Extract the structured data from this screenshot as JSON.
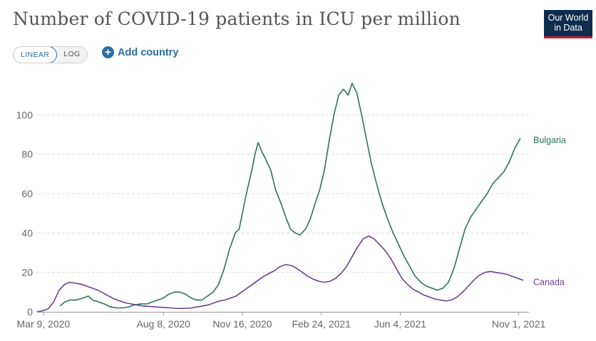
{
  "header": {
    "title": "Number of COVID-19 patients in ICU per million",
    "logo_line1": "Our World",
    "logo_line2": "in Data"
  },
  "controls": {
    "linear_label": "LINEAR",
    "log_label": "LOG",
    "add_country_label": "Add country"
  },
  "colors": {
    "bulgaria": "#2b7360",
    "canada": "#6c3e92",
    "grid": "#dddddd",
    "accent": "#2d6ea4"
  },
  "chart_data": {
    "type": "line",
    "title": "Number of COVID-19 patients in ICU per million",
    "xlabel": "",
    "ylabel": "",
    "xlim": [
      "2020-03-01",
      "2021-11-14"
    ],
    "ylim": [
      0,
      120
    ],
    "y_ticks": [
      0,
      20,
      40,
      60,
      80,
      100
    ],
    "x_ticks": [
      {
        "date": "2020-03-09",
        "label": "Mar 9, 2020"
      },
      {
        "date": "2020-08-08",
        "label": "Aug 8, 2020"
      },
      {
        "date": "2020-11-16",
        "label": "Nov 16, 2020"
      },
      {
        "date": "2021-02-24",
        "label": "Feb 24, 2021"
      },
      {
        "date": "2021-06-04",
        "label": "Jun 4, 2021"
      },
      {
        "date": "2021-11-01",
        "label": "Nov 1, 2021"
      }
    ],
    "grid": "horizontal-dashed",
    "legend": "line-end-labels",
    "series": [
      {
        "name": "Bulgaria",
        "points": [
          [
            "2020-03-30",
            3
          ],
          [
            "2020-04-05",
            5
          ],
          [
            "2020-04-12",
            6
          ],
          [
            "2020-04-20",
            6
          ],
          [
            "2020-04-28",
            7
          ],
          [
            "2020-05-05",
            8
          ],
          [
            "2020-05-10",
            6
          ],
          [
            "2020-05-18",
            5
          ],
          [
            "2020-05-25",
            4
          ],
          [
            "2020-06-02",
            2.5
          ],
          [
            "2020-06-10",
            2
          ],
          [
            "2020-06-18",
            2
          ],
          [
            "2020-06-25",
            2.5
          ],
          [
            "2020-07-02",
            3.5
          ],
          [
            "2020-07-10",
            4
          ],
          [
            "2020-07-18",
            4
          ],
          [
            "2020-07-25",
            5
          ],
          [
            "2020-08-01",
            6
          ],
          [
            "2020-08-08",
            7
          ],
          [
            "2020-08-15",
            9
          ],
          [
            "2020-08-22",
            10
          ],
          [
            "2020-08-29",
            10
          ],
          [
            "2020-09-05",
            9
          ],
          [
            "2020-09-12",
            7
          ],
          [
            "2020-09-19",
            6
          ],
          [
            "2020-09-26",
            6
          ],
          [
            "2020-10-03",
            8
          ],
          [
            "2020-10-10",
            10
          ],
          [
            "2020-10-17",
            14
          ],
          [
            "2020-10-24",
            22
          ],
          [
            "2020-10-31",
            32
          ],
          [
            "2020-11-07",
            40
          ],
          [
            "2020-11-12",
            42
          ],
          [
            "2020-11-16",
            50
          ],
          [
            "2020-11-20",
            58
          ],
          [
            "2020-11-24",
            65
          ],
          [
            "2020-11-28",
            72
          ],
          [
            "2020-12-02",
            80
          ],
          [
            "2020-12-06",
            86
          ],
          [
            "2020-12-10",
            82
          ],
          [
            "2020-12-16",
            77
          ],
          [
            "2020-12-22",
            72
          ],
          [
            "2020-12-28",
            62
          ],
          [
            "2021-01-04",
            55
          ],
          [
            "2021-01-10",
            48
          ],
          [
            "2021-01-16",
            42
          ],
          [
            "2021-01-22",
            40
          ],
          [
            "2021-01-28",
            39
          ],
          [
            "2021-02-04",
            42
          ],
          [
            "2021-02-10",
            47
          ],
          [
            "2021-02-16",
            55
          ],
          [
            "2021-02-22",
            62
          ],
          [
            "2021-02-28",
            72
          ],
          [
            "2021-03-06",
            87
          ],
          [
            "2021-03-12",
            100
          ],
          [
            "2021-03-18",
            110
          ],
          [
            "2021-03-24",
            113
          ],
          [
            "2021-03-30",
            110
          ],
          [
            "2021-04-04",
            116
          ],
          [
            "2021-04-10",
            111
          ],
          [
            "2021-04-16",
            100
          ],
          [
            "2021-04-22",
            88
          ],
          [
            "2021-04-28",
            76
          ],
          [
            "2021-05-05",
            65
          ],
          [
            "2021-05-12",
            55
          ],
          [
            "2021-05-19",
            47
          ],
          [
            "2021-05-26",
            40
          ],
          [
            "2021-06-02",
            34
          ],
          [
            "2021-06-09",
            28
          ],
          [
            "2021-06-16",
            23
          ],
          [
            "2021-06-23",
            18
          ],
          [
            "2021-06-30",
            15
          ],
          [
            "2021-07-07",
            13
          ],
          [
            "2021-07-14",
            12
          ],
          [
            "2021-07-21",
            11
          ],
          [
            "2021-07-28",
            12
          ],
          [
            "2021-08-04",
            15
          ],
          [
            "2021-08-11",
            22
          ],
          [
            "2021-08-18",
            32
          ],
          [
            "2021-08-25",
            42
          ],
          [
            "2021-09-01",
            48
          ],
          [
            "2021-09-08",
            52
          ],
          [
            "2021-09-15",
            56
          ],
          [
            "2021-09-22",
            60
          ],
          [
            "2021-09-29",
            65
          ],
          [
            "2021-10-06",
            68
          ],
          [
            "2021-10-13",
            71
          ],
          [
            "2021-10-20",
            76
          ],
          [
            "2021-10-27",
            83
          ],
          [
            "2021-11-03",
            88
          ]
        ]
      },
      {
        "name": "Canada",
        "points": [
          [
            "2020-03-01",
            0
          ],
          [
            "2020-03-08",
            0.5
          ],
          [
            "2020-03-15",
            1.5
          ],
          [
            "2020-03-22",
            5
          ],
          [
            "2020-03-29",
            11
          ],
          [
            "2020-04-05",
            14
          ],
          [
            "2020-04-12",
            15
          ],
          [
            "2020-04-19",
            14.5
          ],
          [
            "2020-04-26",
            14
          ],
          [
            "2020-05-03",
            13
          ],
          [
            "2020-05-10",
            12
          ],
          [
            "2020-05-17",
            11
          ],
          [
            "2020-05-24",
            9.5
          ],
          [
            "2020-05-31",
            8
          ],
          [
            "2020-06-07",
            6.5
          ],
          [
            "2020-06-14",
            5.5
          ],
          [
            "2020-06-21",
            4.5
          ],
          [
            "2020-06-28",
            4
          ],
          [
            "2020-07-05",
            3.5
          ],
          [
            "2020-07-12",
            3
          ],
          [
            "2020-07-19",
            2.8
          ],
          [
            "2020-07-26",
            2.6
          ],
          [
            "2020-08-02",
            2.4
          ],
          [
            "2020-08-09",
            2.2
          ],
          [
            "2020-08-16",
            2
          ],
          [
            "2020-08-23",
            1.8
          ],
          [
            "2020-08-30",
            1.7
          ],
          [
            "2020-09-06",
            1.8
          ],
          [
            "2020-09-13",
            2
          ],
          [
            "2020-09-20",
            2.5
          ],
          [
            "2020-09-27",
            3
          ],
          [
            "2020-10-04",
            3.5
          ],
          [
            "2020-10-11",
            4.5
          ],
          [
            "2020-10-18",
            5.5
          ],
          [
            "2020-10-25",
            6
          ],
          [
            "2020-11-01",
            7
          ],
          [
            "2020-11-08",
            8
          ],
          [
            "2020-11-15",
            10
          ],
          [
            "2020-11-22",
            12
          ],
          [
            "2020-11-29",
            14
          ],
          [
            "2020-12-06",
            16
          ],
          [
            "2020-12-13",
            18
          ],
          [
            "2020-12-20",
            19.5
          ],
          [
            "2020-12-27",
            21
          ],
          [
            "2021-01-03",
            23
          ],
          [
            "2021-01-10",
            24
          ],
          [
            "2021-01-17",
            23.5
          ],
          [
            "2021-01-24",
            22
          ],
          [
            "2021-01-31",
            20
          ],
          [
            "2021-02-07",
            18
          ],
          [
            "2021-02-14",
            16.5
          ],
          [
            "2021-02-21",
            15.5
          ],
          [
            "2021-02-28",
            15
          ],
          [
            "2021-03-07",
            15.5
          ],
          [
            "2021-03-14",
            17
          ],
          [
            "2021-03-21",
            19.5
          ],
          [
            "2021-03-28",
            23
          ],
          [
            "2021-04-04",
            28
          ],
          [
            "2021-04-11",
            33
          ],
          [
            "2021-04-18",
            37
          ],
          [
            "2021-04-25",
            38.5
          ],
          [
            "2021-05-02",
            37
          ],
          [
            "2021-05-09",
            34
          ],
          [
            "2021-05-16",
            31
          ],
          [
            "2021-05-23",
            27
          ],
          [
            "2021-05-30",
            22
          ],
          [
            "2021-06-06",
            17
          ],
          [
            "2021-06-13",
            14
          ],
          [
            "2021-06-20",
            11.5
          ],
          [
            "2021-06-27",
            10
          ],
          [
            "2021-07-04",
            8.5
          ],
          [
            "2021-07-11",
            7.5
          ],
          [
            "2021-07-18",
            6.5
          ],
          [
            "2021-07-25",
            6
          ],
          [
            "2021-08-01",
            5.5
          ],
          [
            "2021-08-08",
            6
          ],
          [
            "2021-08-15",
            7.5
          ],
          [
            "2021-08-22",
            10
          ],
          [
            "2021-08-29",
            13
          ],
          [
            "2021-09-05",
            16
          ],
          [
            "2021-09-12",
            18.5
          ],
          [
            "2021-09-19",
            20
          ],
          [
            "2021-09-26",
            20.5
          ],
          [
            "2021-10-03",
            20
          ],
          [
            "2021-10-10",
            19.5
          ],
          [
            "2021-10-17",
            19
          ],
          [
            "2021-10-24",
            18
          ],
          [
            "2021-10-31",
            17
          ],
          [
            "2021-11-07",
            16
          ]
        ]
      }
    ]
  }
}
